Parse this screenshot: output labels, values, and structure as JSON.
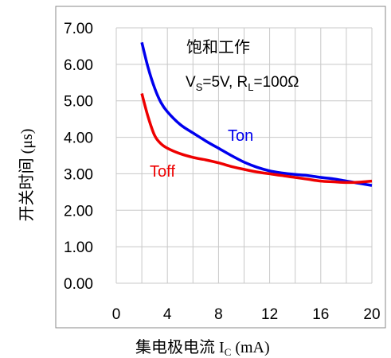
{
  "chart_data": {
    "type": "line",
    "xlabel": "集电极电流 I",
    "xlabel_sub": "C",
    "xlabel_unit": " (mA)",
    "ylabel": "开关时间 (μs)",
    "xlim": [
      0,
      20
    ],
    "ylim": [
      0,
      7
    ],
    "xticks": [
      0,
      4,
      8,
      12,
      16,
      20
    ],
    "yticks": [
      "0.00",
      "1.00",
      "2.00",
      "3.00",
      "4.00",
      "5.00",
      "6.00",
      "7.00"
    ],
    "grid": true,
    "annotation": {
      "line1": "饱和工作",
      "vs_main": "V",
      "vs_sub": "S",
      "vs_rest": "=5V, R",
      "rl_sub": "L",
      "rl_rest": "=100Ω"
    },
    "series": [
      {
        "name": "Ton",
        "color": "#0000ee",
        "x": [
          2,
          2.5,
          3,
          3.5,
          4,
          5,
          6,
          7,
          8,
          9,
          10,
          11,
          12,
          13,
          14,
          15,
          16,
          17,
          18,
          19,
          20
        ],
        "y": [
          6.6,
          5.9,
          5.35,
          4.95,
          4.7,
          4.35,
          4.12,
          3.9,
          3.7,
          3.5,
          3.32,
          3.18,
          3.08,
          3.02,
          2.98,
          2.95,
          2.9,
          2.86,
          2.8,
          2.74,
          2.68
        ]
      },
      {
        "name": "Toff",
        "color": "#ee0000",
        "x": [
          2,
          2.5,
          3,
          3.5,
          4,
          5,
          6,
          7,
          8,
          9,
          10,
          11,
          12,
          13,
          14,
          15,
          16,
          17,
          18,
          19,
          20
        ],
        "y": [
          5.2,
          4.55,
          4.05,
          3.82,
          3.7,
          3.55,
          3.45,
          3.38,
          3.3,
          3.2,
          3.12,
          3.05,
          3.0,
          2.95,
          2.9,
          2.85,
          2.8,
          2.78,
          2.76,
          2.77,
          2.8
        ]
      }
    ]
  }
}
